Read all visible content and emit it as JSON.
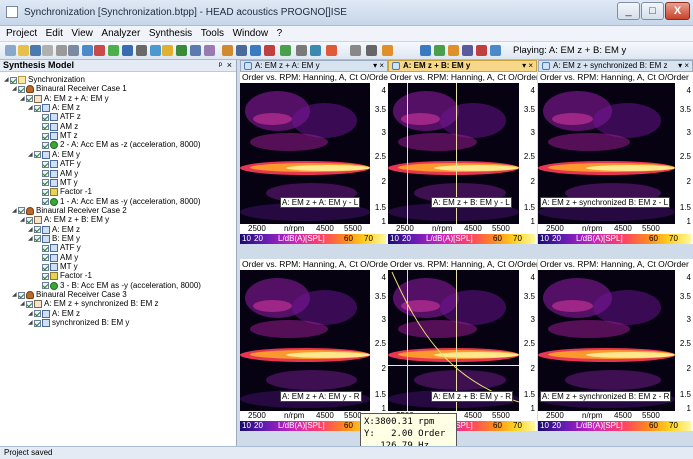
{
  "window": {
    "title": "Synchronization [Synchronization.btpp] - HEAD acoustics PROGNO[]ISE",
    "minimize": "_",
    "maximize": "□",
    "close": "X"
  },
  "menu": [
    "Project",
    "Edit",
    "View",
    "Analyzer",
    "Synthesis",
    "Tools",
    "Window",
    "?"
  ],
  "toolbar": {
    "playing": "Playing: A: EM z + B: EM y"
  },
  "panel": {
    "title": "Synthesis Model",
    "pin": "ᵖ",
    "close": "×",
    "tree": [
      {
        "label": "Synchronization",
        "depth": 0,
        "icon": "folder"
      },
      {
        "label": "Binaural Receiver Case 1",
        "depth": 1,
        "icon": "person"
      },
      {
        "label": "A: EM z + A: EM y",
        "depth": 2,
        "icon": "mixer"
      },
      {
        "label": "A: EM z",
        "depth": 3,
        "icon": "filter"
      },
      {
        "label": "ATF z",
        "depth": 4,
        "icon": "filter"
      },
      {
        "label": "AM z",
        "depth": 4,
        "icon": "filter"
      },
      {
        "label": "MT z",
        "depth": 4,
        "icon": "filter"
      },
      {
        "label": "2 - A: Acc EM as -z (acceleration, 8000)",
        "depth": 4,
        "icon": "green"
      },
      {
        "label": "A: EM y",
        "depth": 3,
        "icon": "filter"
      },
      {
        "label": "ATF y",
        "depth": 4,
        "icon": "filter"
      },
      {
        "label": "AM y",
        "depth": 4,
        "icon": "filter"
      },
      {
        "label": "MT y",
        "depth": 4,
        "icon": "filter"
      },
      {
        "label": "Factor -1",
        "depth": 4,
        "icon": "factor"
      },
      {
        "label": "1 - A: Acc EM as -y (acceleration, 8000)",
        "depth": 4,
        "icon": "green"
      },
      {
        "label": "Binaural Receiver Case 2",
        "depth": 1,
        "icon": "person"
      },
      {
        "label": "A: EM z + B: EM y",
        "depth": 2,
        "icon": "mixer"
      },
      {
        "label": "A: EM z",
        "depth": 3,
        "icon": "filter"
      },
      {
        "label": "B: EM y",
        "depth": 3,
        "icon": "filter"
      },
      {
        "label": "ATF y",
        "depth": 4,
        "icon": "filter"
      },
      {
        "label": "AM y",
        "depth": 4,
        "icon": "filter"
      },
      {
        "label": "MT y",
        "depth": 4,
        "icon": "filter"
      },
      {
        "label": "Factor -1",
        "depth": 4,
        "icon": "factor"
      },
      {
        "label": "3 - B: Acc EM as -y (acceleration, 8000)",
        "depth": 4,
        "icon": "green"
      },
      {
        "label": "Binaural Receiver Case 3",
        "depth": 1,
        "icon": "person"
      },
      {
        "label": "A: EM z + synchronized B: EM z",
        "depth": 2,
        "icon": "mixer"
      },
      {
        "label": "A: EM z",
        "depth": 3,
        "icon": "filter"
      },
      {
        "label": "synchronized B: EM y",
        "depth": 3,
        "icon": "filter"
      }
    ]
  },
  "docs": [
    {
      "tab": "A: EM z + A: EM y",
      "ctl": "▾ ×",
      "active": false
    },
    {
      "tab": "A: EM z + B: EM y",
      "ctl": "▾ ×",
      "active": true
    },
    {
      "tab": "A: EM z + synchronized B: EM z",
      "ctl": "▾ ×",
      "active": false
    }
  ],
  "plots": [
    {
      "title": "Order vs. RPM: Hanning, A, Ct O/Order",
      "label": "A: EM z + A: EM y - L"
    },
    {
      "title": "Order vs. RPM: Hanning, A, Ct O/Order",
      "label": "A: EM z + B: EM y - L"
    },
    {
      "title": "Order vs. RPM: Hanning, A, Ct O/Order",
      "label": "A: EM z + synchronized B: EM z - L"
    },
    {
      "title": "Order vs. RPM: Hanning, A, Ct O/Order",
      "label": "A: EM z + A: EM y - R"
    },
    {
      "title": "Order vs. RPM: Hanning, A, Ct O/Order",
      "label": "A: EM z + B: EM y - R"
    },
    {
      "title": "Order vs. RPM: Hanning, A, Ct O/Order",
      "label": "A: EM z + synchronized B: EM z - R"
    }
  ],
  "yticks": [
    "4",
    "3.5",
    "3",
    "2.5",
    "2",
    "1.5",
    "1"
  ],
  "xaxis": {
    "t1": "2500",
    "unit": "n/rpm",
    "t2": "4500",
    "t3": "5500"
  },
  "colorbar": {
    "l1": "10",
    "l2": "20",
    "unit": "L/dB(A)[SPL]",
    "r1": "60",
    "r2": "70"
  },
  "tooltip": {
    "line1": "X:3800.31 rpm",
    "line2": "Y:   2.00 Order",
    "line3": "   126.79 Hz"
  },
  "status": "Project saved"
}
